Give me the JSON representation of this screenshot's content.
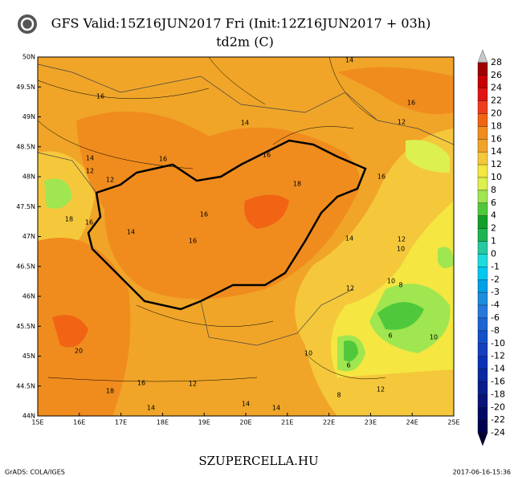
{
  "title": "GFS Valid:15Z16JUN2017 Fri (Init:12Z16JUN2017 + 03h)",
  "subtitle": "td2m (C)",
  "lat_labels": [
    "50N",
    "49.5N",
    "49N",
    "48.5N",
    "48N",
    "47.5N",
    "47N",
    "46.5N",
    "46N",
    "45.5N",
    "45N",
    "44.5N",
    "44N"
  ],
  "lon_labels": [
    "15E",
    "16E",
    "17E",
    "18E",
    "19E",
    "20E",
    "21E",
    "22E",
    "23E",
    "24E",
    "25E"
  ],
  "contour_labels": [
    14,
    16,
    16,
    14,
    12,
    16,
    14,
    16,
    12,
    12,
    18,
    16,
    18,
    16,
    16,
    14,
    16,
    14,
    12,
    10,
    10,
    8,
    12,
    6,
    10,
    10,
    20,
    6,
    16,
    12,
    18,
    12,
    14,
    14,
    14,
    8
  ],
  "colorbar": {
    "levels": [
      28,
      26,
      24,
      22,
      20,
      18,
      16,
      14,
      12,
      10,
      8,
      6,
      4,
      2,
      1,
      0,
      -1,
      -2,
      -3,
      -4,
      -6,
      -8,
      -10,
      -12,
      -14,
      -16,
      -18,
      -20,
      -22,
      -24
    ],
    "colors": [
      "#c8c8c8",
      "#a00000",
      "#c80000",
      "#e01414",
      "#f03c1e",
      "#f06414",
      "#f08c1e",
      "#f0a528",
      "#f5c83c",
      "#f5e641",
      "#dcf050",
      "#a0e650",
      "#50c83c",
      "#14a028",
      "#1eb450",
      "#28c8a0",
      "#1edcdc",
      "#00c8f0",
      "#00a0e6",
      "#1e8cdc",
      "#2878dc",
      "#1e64d2",
      "#1450c8",
      "#1440be",
      "#0a32b4",
      "#0a28a0",
      "#0a1e8c",
      "#0a1478",
      "#000a64",
      "#000050",
      "#000032"
    ]
  },
  "footer": "SZUPERCELLA.HU",
  "credit": "GrADS: COLA/IGES",
  "timestamp": "2017-06-16-15:36"
}
